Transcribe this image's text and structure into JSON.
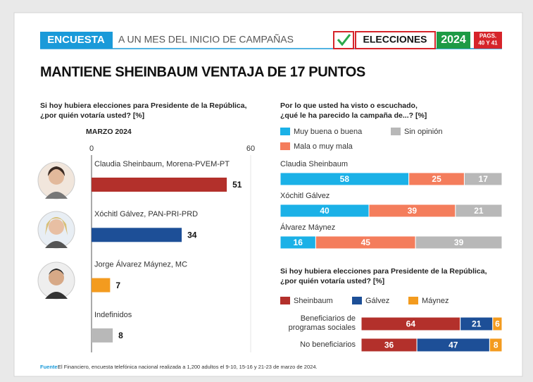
{
  "header": {
    "tag": "ENCUESTA",
    "subtitle": "A UN MES DEL INICIO DE CAMPAÑAS",
    "brand": "ELECCIONES",
    "year": "2024",
    "pages": [
      "PAGS.",
      "40 Y 41"
    ]
  },
  "title": "MANTIENE SHEINBAUM VENTAJA DE 17 PUNTOS",
  "chart_data": [
    {
      "type": "bar",
      "orientation": "horizontal",
      "title": [
        "Si hoy hubiera elecciones para Presidente de la República,",
        "¿por quién votaría usted? [%]"
      ],
      "subtitle": "MARZO 2024",
      "categories": [
        "Claudia Sheinbaum, Morena-PVEM-PT",
        "Xóchitl Gálvez, PAN-PRI-PRD",
        "Jorge Álvarez Máynez, MC",
        "Indefinidos"
      ],
      "values": [
        51,
        34,
        7,
        8
      ],
      "colors": [
        "#b3302b",
        "#1d4f97",
        "#f39b1f",
        "#b8b8b8"
      ],
      "xlim": [
        0,
        60
      ],
      "xticks": [
        0,
        60
      ]
    },
    {
      "type": "stacked-bar",
      "orientation": "horizontal",
      "title": [
        "Por lo que usted ha visto o escuchado,",
        "¿qué le ha parecido la campaña de...? [%]"
      ],
      "categories": [
        "Claudia Sheinbaum",
        "Xóchitl Gálvez",
        "Álvarez Máynez"
      ],
      "series": [
        {
          "name": "Muy buena o buena",
          "color": "#1bb1e7",
          "values": [
            58,
            40,
            16
          ]
        },
        {
          "name": "Mala o muy mala",
          "color": "#f47d5c",
          "values": [
            25,
            39,
            45
          ]
        },
        {
          "name": "Sin opinión",
          "color": "#b8b8b8",
          "values": [
            17,
            21,
            39
          ]
        }
      ]
    },
    {
      "type": "stacked-bar",
      "orientation": "horizontal",
      "title": [
        "Si hoy hubiera elecciones para Presidente de la República,",
        "¿por quién votaría usted? [%]"
      ],
      "categories": [
        "Beneficiarios de programas sociales",
        "No beneficiarios"
      ],
      "series": [
        {
          "name": "Sheinbaum",
          "color": "#b3302b",
          "values": [
            64,
            36
          ]
        },
        {
          "name": "Gálvez",
          "color": "#1d4f97",
          "values": [
            21,
            47
          ]
        },
        {
          "name": "Máynez",
          "color": "#f39b1f",
          "values": [
            6,
            8
          ]
        }
      ]
    }
  ],
  "footer": {
    "label": "Fuente:",
    "text": "El Financiero, encuesta telefónica nacional realizada a 1,200 adultos el 9-10, 15-16 y 21-23 de marzo de 2024."
  }
}
